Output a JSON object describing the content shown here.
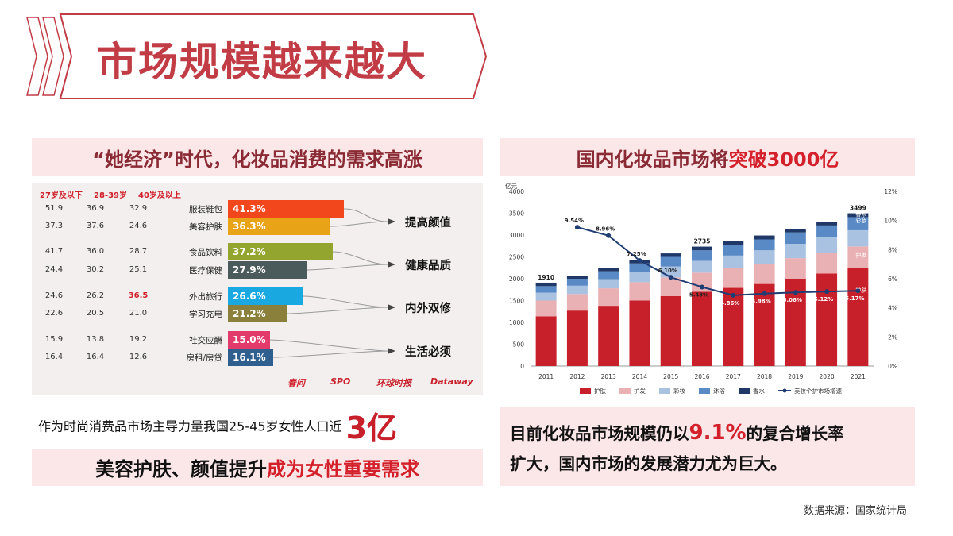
{
  "title": "市场规模越来越大",
  "left_banner": "“她经济”时代，化妆品消费的需求高涨",
  "right_banner_part1": "国内化妆品市场将",
  "right_banner_part2": "突破3000亿",
  "women_text": "作为时尚消费品市场主导力量我国25-45岁女性人口近",
  "women_number": "3亿",
  "beauty_banner_part1": "美容护肤、颜值提升",
  "beauty_banner_part2": "成为女性重要需求",
  "right_para_part1": "目前化妆品市场规模仍以",
  "right_para_rate": "9.1%",
  "right_para_part2": "的复合增长率",
  "right_para_line2": "扩大，国内市场的发展潜力尤为巨大。",
  "source": "数据来源：国家统计局",
  "colors": {
    "title_red": "#c23c46",
    "accent_red": "#d3202a",
    "banner_pink": "#fbe6e8",
    "bar_skincare": "#c8202a",
    "bar_hair": "#e9b1b4",
    "bar_makeup": "#a9c2e2",
    "bar_bath": "#5a8ac6",
    "bar_fragrance": "#1f3867",
    "growth_line": "#1f3c73"
  },
  "logos": [
    "春问",
    "SPO",
    "环球时报",
    "Dataway"
  ],
  "left_chart": {
    "type": "table",
    "age_groups": [
      "27岁及以下",
      "28-39岁",
      "40岁及以上"
    ],
    "rows": [
      {
        "category": "服装鞋包",
        "values": [
          "51.9",
          "36.9",
          "32.9"
        ],
        "share": 41.3,
        "share_label": "41.3%",
        "color": "#f2461c"
      },
      {
        "category": "美容护肤",
        "values": [
          "37.3",
          "37.6",
          "24.6"
        ],
        "share": 36.3,
        "share_label": "36.3%",
        "color": "#e9a317"
      },
      {
        "category": "食品饮料",
        "values": [
          "41.7",
          "36.0",
          "28.7"
        ],
        "share": 37.2,
        "share_label": "37.2%",
        "color": "#93a52f"
      },
      {
        "category": "医疗保健",
        "values": [
          "24.4",
          "30.2",
          "25.1"
        ],
        "share": 27.9,
        "share_label": "27.9%",
        "color": "#4b5a5a"
      },
      {
        "category": "外出旅行",
        "values": [
          "24.6",
          "26.2",
          "36.5"
        ],
        "share": 26.6,
        "share_label": "26.6%",
        "color": "#19a8e0"
      },
      {
        "category": "学习充电",
        "values": [
          "22.6",
          "20.5",
          "21.0"
        ],
        "share": 21.2,
        "share_label": "21.2%",
        "color": "#8a7f3b"
      },
      {
        "category": "社交应酬",
        "values": [
          "15.9",
          "13.8",
          "19.2"
        ],
        "share": 15.0,
        "share_label": "15.0%",
        "color": "#e23a6a"
      },
      {
        "category": "房租/房贷",
        "values": [
          "16.4",
          "16.4",
          "12.6"
        ],
        "share": 16.1,
        "share_label": "16.1%",
        "color": "#2f5f8f"
      }
    ],
    "groups": [
      "提高颜值",
      "健康品质",
      "内外双修",
      "生活必须"
    ]
  },
  "chart_data": {
    "type": "bar",
    "stacked": true,
    "categories": [
      "2011",
      "2012",
      "2013",
      "2014",
      "2015",
      "2016",
      "2017",
      "2018",
      "2019",
      "2020",
      "2021"
    ],
    "ylabel": "亿元",
    "ylim": [
      0,
      4000
    ],
    "y_ticks": [
      "0",
      "500",
      "1000",
      "1500",
      "2000",
      "2500",
      "3000",
      "3500",
      "4000"
    ],
    "y2lim": [
      0,
      12
    ],
    "y2_ticks": [
      "0%",
      "2%",
      "4%",
      "6%",
      "8%",
      "10%",
      "12%"
    ],
    "totals": [
      1910,
      2070,
      2250,
      2430,
      2580,
      2735,
      2860,
      2990,
      3140,
      3300,
      3499
    ],
    "total_labels": [
      "1910",
      "",
      "",
      "",
      "",
      "2735",
      "",
      "",
      "",
      "",
      "3499"
    ],
    "series": [
      {
        "name": "护肤",
        "color": "#c8202a",
        "values": [
          1140,
          1270,
          1380,
          1500,
          1600,
          1700,
          1790,
          1880,
          2000,
          2120,
          2250
        ]
      },
      {
        "name": "护发",
        "color": "#e9b1b4",
        "values": [
          360,
          380,
          400,
          420,
          430,
          440,
          450,
          460,
          470,
          480,
          490
        ]
      },
      {
        "name": "彩妆",
        "color": "#a9c2e2",
        "values": [
          180,
          190,
          210,
          230,
          250,
          270,
          290,
          310,
          330,
          350,
          370
        ]
      },
      {
        "name": "沐浴",
        "color": "#5a8ac6",
        "values": [
          150,
          160,
          180,
          200,
          220,
          240,
          240,
          250,
          260,
          270,
          300
        ]
      },
      {
        "name": "香水",
        "color": "#1f3867",
        "values": [
          80,
          70,
          80,
          80,
          80,
          85,
          90,
          90,
          80,
          80,
          89
        ]
      }
    ],
    "line_series": {
      "name": "美妆个护市场增速",
      "values": [
        null,
        9.54,
        8.96,
        7.25,
        6.1,
        5.43,
        4.86,
        4.98,
        5.06,
        5.12,
        5.17
      ],
      "labels": [
        "",
        "9.54%",
        "8.96%",
        "7.25%",
        "6.10%",
        "5.43%",
        "4.86%",
        "4.98%",
        "5.06%",
        "5.12%",
        "5.17%"
      ]
    },
    "bar_labels": [
      {
        "category": "2021",
        "text": "香水"
      },
      {
        "category": "2021",
        "text": "彩妆"
      },
      {
        "category": "2021",
        "text": "护发"
      },
      {
        "category": "2021",
        "text": "护肤"
      }
    ]
  }
}
